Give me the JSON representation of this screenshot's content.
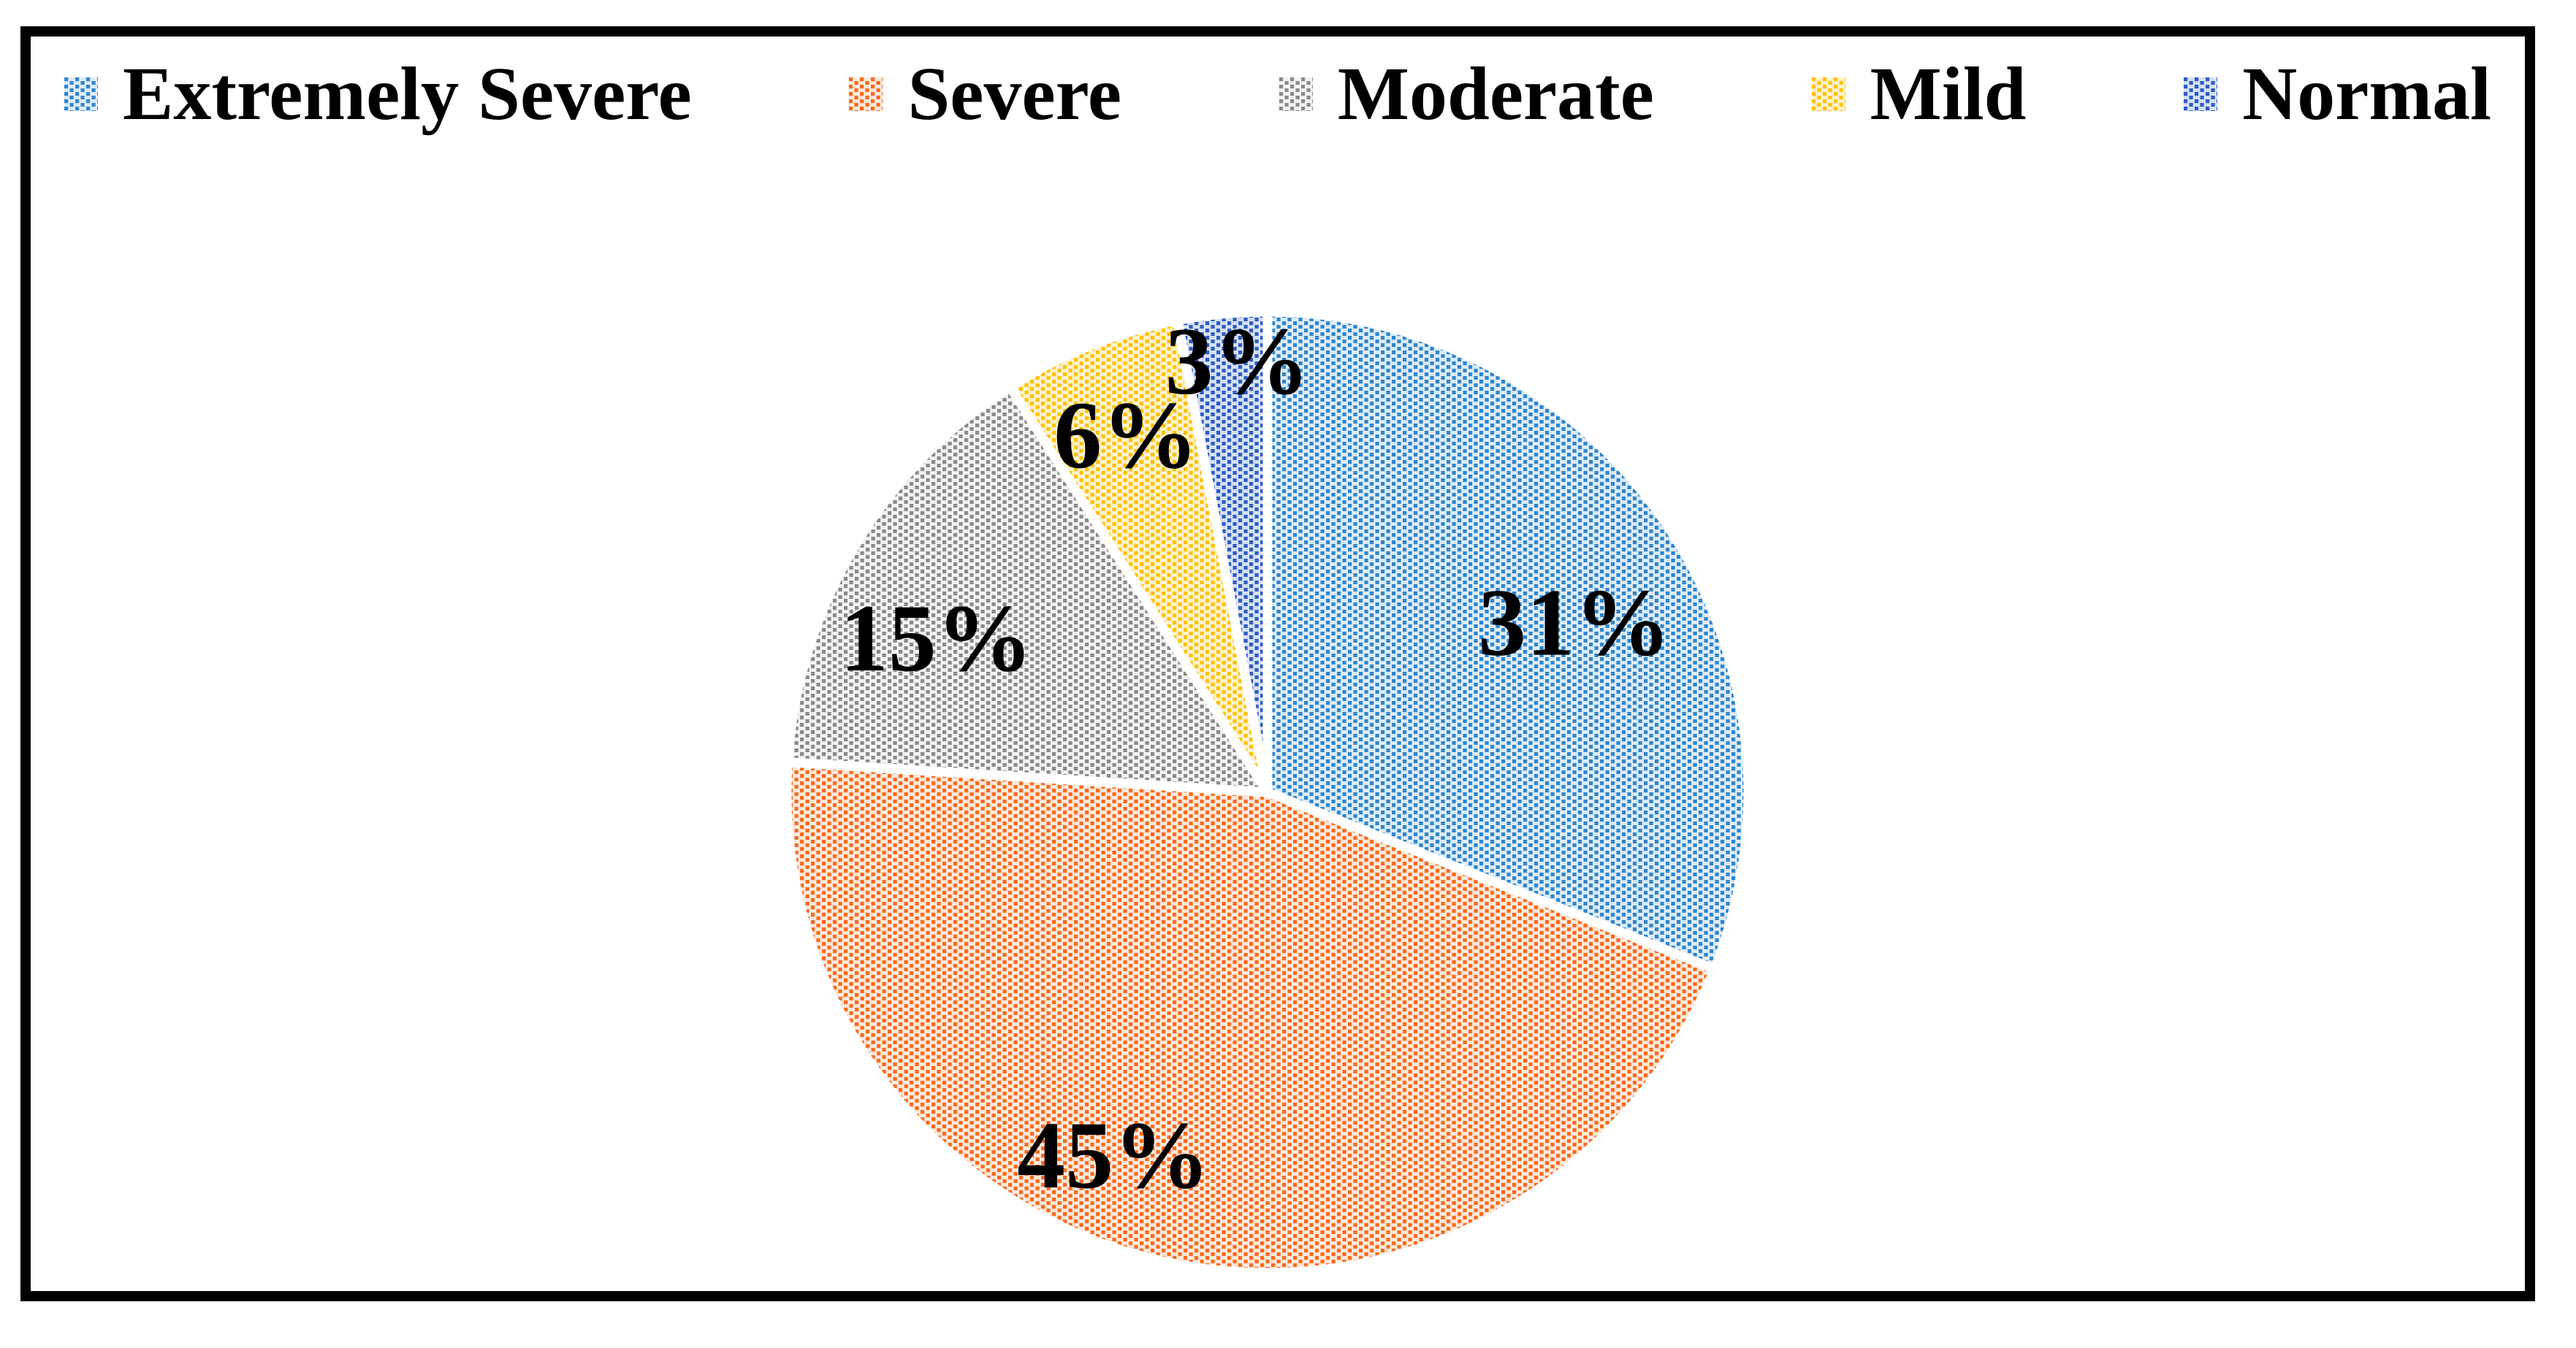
{
  "page": {
    "background_color": "#FFFFFF",
    "frame_border_color": "#000000"
  },
  "legend": {
    "position": "top"
  },
  "chart_data": {
    "type": "pie",
    "title": "",
    "categories": [
      "Extremely Severe",
      "Severe",
      "Moderate",
      "Mild",
      "Normal"
    ],
    "values": [
      31,
      45,
      15,
      6,
      3
    ],
    "unit": "%",
    "data_labels": [
      "31%",
      "45%",
      "15%",
      "6%",
      "3%"
    ],
    "legend_position": "top",
    "start_angle_deg": 0,
    "direction": "clockwise",
    "label_color": "#000000",
    "separator_color": "#FFFFFF",
    "slice_styles": [
      {
        "slug": "extremely-severe",
        "dot_color": "#2E86CD",
        "bg_color": "#DEEBF7"
      },
      {
        "slug": "severe",
        "dot_color": "#F96A1C",
        "bg_color": "#FCE9DD"
      },
      {
        "slug": "moderate",
        "dot_color": "#8A8A8A",
        "bg_color": "#F2F2F2"
      },
      {
        "slug": "mild",
        "dot_color": "#FFC001",
        "bg_color": "#FFF3CD"
      },
      {
        "slug": "normal",
        "dot_color": "#2E5CC5",
        "bg_color": "#D6E0F2"
      }
    ]
  }
}
